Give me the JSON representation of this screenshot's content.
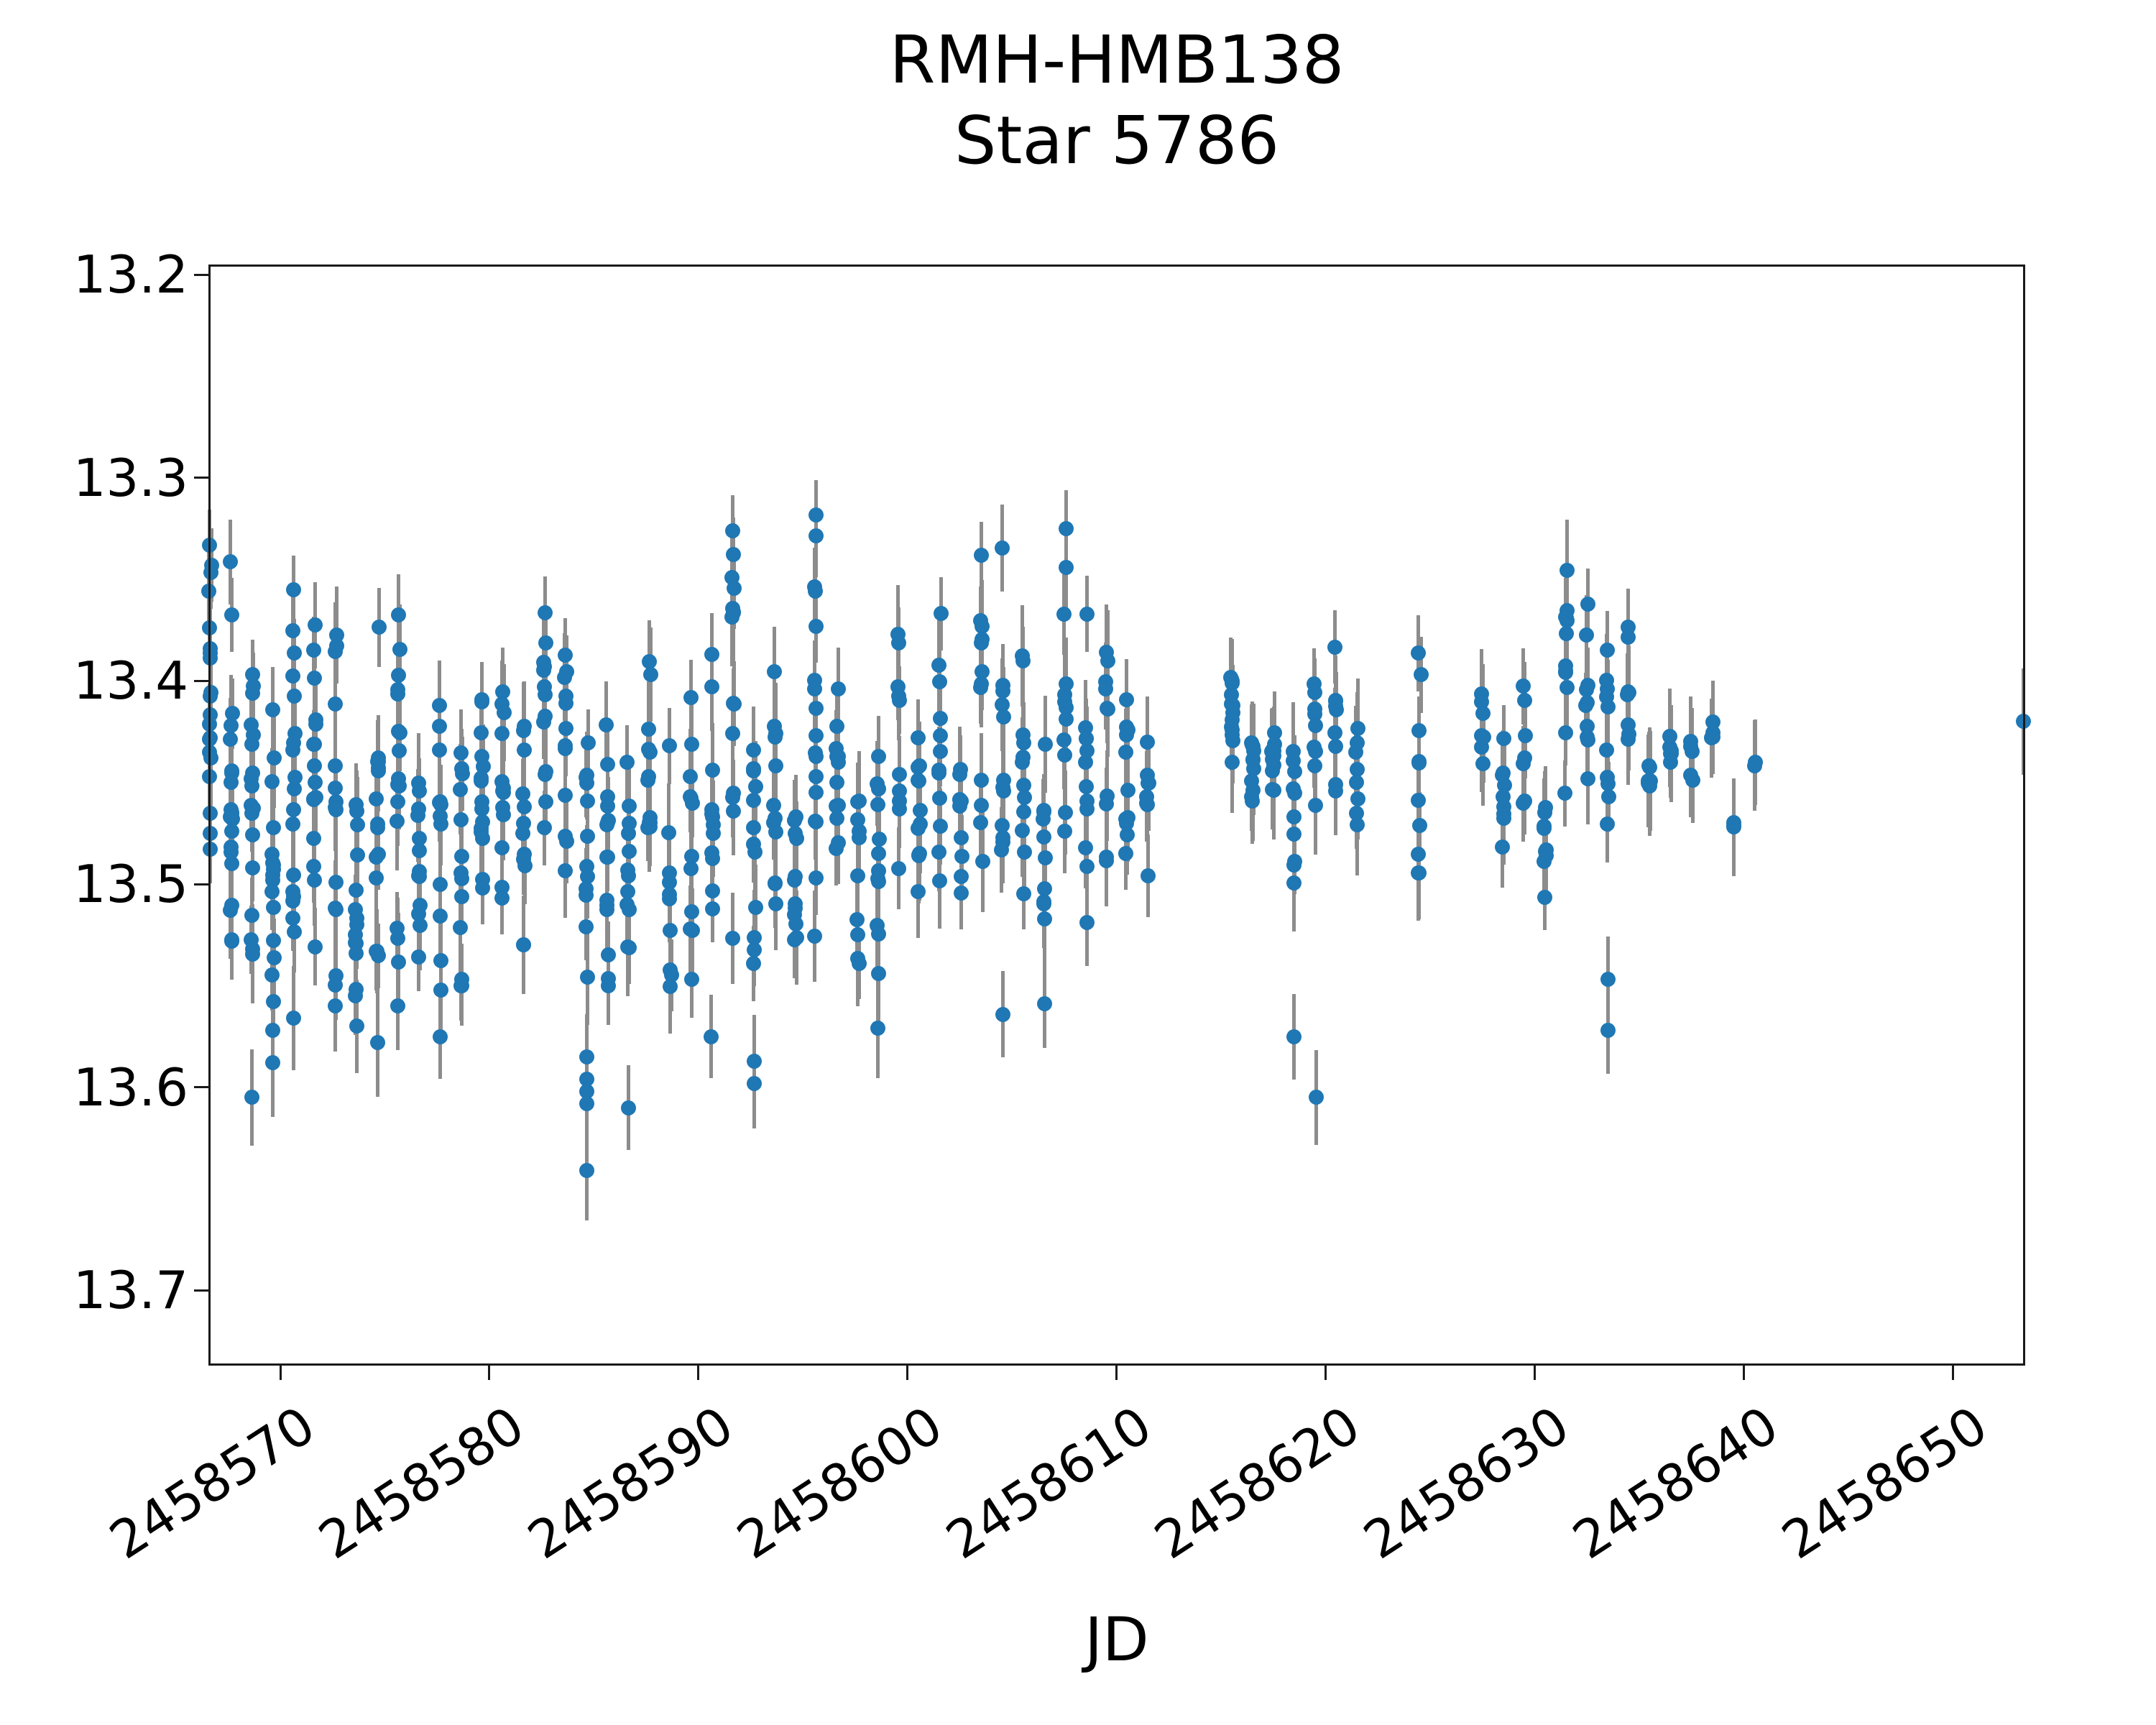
{
  "figure": {
    "title_line1": "RMH-HMB138",
    "title_line2": "Star 5786",
    "xlabel": "JD"
  },
  "chart_data": {
    "type": "scatter",
    "title": "RMH-HMB138\nStar 5786",
    "xlabel": "JD",
    "ylabel": "",
    "legend": "none",
    "grid": false,
    "marker": "filled-circle-with-vertical-errorbar",
    "x_axis": {
      "label": "JD",
      "min": 2458566.56,
      "max": 2458653.47,
      "ticks": [
        2458570,
        2458580,
        2458590,
        2458600,
        2458610,
        2458620,
        2458630,
        2458640,
        2458650
      ],
      "tick_rotation_deg": 33
    },
    "y_axis": {
      "label": "",
      "inverted": true,
      "min": 13.195,
      "max": 13.737,
      "ticks": [
        13.2,
        13.3,
        13.4,
        13.5,
        13.6,
        13.7
      ],
      "tick_decimals": 1
    },
    "style": {
      "marker_color": "#1f77b4",
      "errorbar_color": "#8c8c8c",
      "axis_color": "#1a1a1a",
      "background_color": "#ffffff"
    },
    "typical_mag_error": 0.02,
    "clusters_note": "Nightly observation clusters: [JD_center, n_points, brightest_mag, faintest_mag]",
    "clusters": [
      [
        2458566.65,
        20,
        13.32,
        13.5
      ],
      [
        2458567.65,
        22,
        13.32,
        13.545
      ],
      [
        2458568.65,
        18,
        13.35,
        13.56
      ],
      [
        2458569.65,
        16,
        13.4,
        13.56
      ],
      [
        2458570.65,
        18,
        13.32,
        13.545
      ],
      [
        2458571.65,
        16,
        13.31,
        13.54
      ],
      [
        2458572.65,
        15,
        13.36,
        13.56
      ],
      [
        2458573.65,
        14,
        13.42,
        13.555
      ],
      [
        2458574.65,
        15,
        13.35,
        13.545
      ],
      [
        2458575.65,
        17,
        13.31,
        13.56
      ],
      [
        2458576.65,
        13,
        13.42,
        13.55
      ],
      [
        2458577.65,
        12,
        13.33,
        13.56
      ],
      [
        2458578.65,
        13,
        13.4,
        13.55
      ],
      [
        2458579.65,
        15,
        13.37,
        13.53
      ],
      [
        2458580.65,
        13,
        13.36,
        13.58
      ],
      [
        2458581.65,
        12,
        13.4,
        13.53
      ],
      [
        2458582.65,
        13,
        13.32,
        13.5
      ],
      [
        2458583.65,
        12,
        13.34,
        13.55
      ],
      [
        2458584.67,
        12,
        13.42,
        13.56
      ],
      [
        2458585.65,
        15,
        13.36,
        13.55
      ],
      [
        2458586.65,
        12,
        13.42,
        13.58
      ],
      [
        2458587.65,
        12,
        13.38,
        13.52
      ],
      [
        2458588.65,
        10,
        13.42,
        13.575
      ],
      [
        2458589.65,
        12,
        13.4,
        13.55
      ],
      [
        2458590.65,
        13,
        13.3,
        13.575
      ],
      [
        2458591.65,
        15,
        13.31,
        13.57
      ],
      [
        2458592.68,
        12,
        13.4,
        13.545
      ],
      [
        2458593.65,
        12,
        13.369,
        13.52
      ],
      [
        2458594.65,
        12,
        13.42,
        13.555
      ],
      [
        2458595.6,
        17,
        13.289,
        13.53
      ],
      [
        2458596.65,
        12,
        13.36,
        13.52
      ],
      [
        2458597.65,
        10,
        13.4,
        13.54
      ],
      [
        2458598.6,
        12,
        13.42,
        13.545
      ],
      [
        2458599.6,
        10,
        13.355,
        13.52
      ],
      [
        2458600.55,
        12,
        13.4,
        13.52
      ],
      [
        2458601.55,
        12,
        13.36,
        13.505
      ],
      [
        2458602.55,
        10,
        13.42,
        13.525
      ],
      [
        2458603.55,
        12,
        13.296,
        13.5
      ],
      [
        2458604.55,
        12,
        13.33,
        13.53
      ],
      [
        2458605.55,
        12,
        13.38,
        13.52
      ],
      [
        2458606.55,
        10,
        13.42,
        13.52
      ],
      [
        2458607.55,
        12,
        13.315,
        13.5
      ],
      [
        2458608.55,
        12,
        13.33,
        13.52
      ],
      [
        2458609.55,
        10,
        13.32,
        13.53
      ],
      [
        2458610.5,
        11,
        13.375,
        13.52
      ],
      [
        2458611.5,
        8,
        13.42,
        13.5
      ],
      [
        2458615.5,
        14,
        13.38,
        13.44
      ],
      [
        2458616.5,
        11,
        13.418,
        13.465
      ],
      [
        2458617.5,
        12,
        13.408,
        13.458
      ],
      [
        2458618.5,
        10,
        13.43,
        13.5
      ],
      [
        2458619.5,
        9,
        13.39,
        13.47
      ],
      [
        2458620.5,
        9,
        13.355,
        13.475
      ],
      [
        2458621.5,
        8,
        13.41,
        13.475
      ],
      [
        2458624.5,
        10,
        13.38,
        13.51
      ],
      [
        2458627.5,
        8,
        13.392,
        13.455
      ],
      [
        2458628.5,
        9,
        13.42,
        13.49
      ],
      [
        2458629.5,
        7,
        13.4,
        13.46
      ],
      [
        2458630.5,
        9,
        13.435,
        13.512
      ],
      [
        2458631.5,
        12,
        13.315,
        13.46
      ],
      [
        2458632.5,
        10,
        13.335,
        13.48
      ],
      [
        2458633.5,
        10,
        13.37,
        13.48
      ],
      [
        2458634.5,
        8,
        13.37,
        13.44
      ],
      [
        2458635.5,
        6,
        13.435,
        13.465
      ],
      [
        2458636.5,
        6,
        13.42,
        13.445
      ],
      [
        2458637.5,
        5,
        13.428,
        13.45
      ],
      [
        2458638.5,
        4,
        13.418,
        13.435
      ],
      [
        2458639.5,
        3,
        13.46,
        13.49
      ],
      [
        2458640.5,
        2,
        13.43,
        13.445
      ]
    ],
    "points_note": "Individually visible outlier points and the isolated last epoch: [JD, mag]",
    "points": [
      [
        2458568.65,
        13.605
      ],
      [
        2458569.65,
        13.572
      ],
      [
        2458569.65,
        13.588
      ],
      [
        2458570.65,
        13.566
      ],
      [
        2458573.65,
        13.57
      ],
      [
        2458574.65,
        13.578
      ],
      [
        2458577.65,
        13.575
      ],
      [
        2458584.67,
        13.585
      ],
      [
        2458584.67,
        13.596
      ],
      [
        2458584.67,
        13.602
      ],
      [
        2458584.67,
        13.608
      ],
      [
        2458584.67,
        13.641
      ],
      [
        2458586.65,
        13.61
      ],
      [
        2458592.68,
        13.587
      ],
      [
        2458592.68,
        13.598
      ],
      [
        2458598.6,
        13.571
      ],
      [
        2458604.55,
        13.564
      ],
      [
        2458606.55,
        13.559
      ],
      [
        2458618.5,
        13.575
      ],
      [
        2458619.55,
        13.605
      ],
      [
        2458633.5,
        13.547
      ],
      [
        2458633.5,
        13.572
      ],
      [
        2458653.4,
        13.42
      ]
    ]
  }
}
